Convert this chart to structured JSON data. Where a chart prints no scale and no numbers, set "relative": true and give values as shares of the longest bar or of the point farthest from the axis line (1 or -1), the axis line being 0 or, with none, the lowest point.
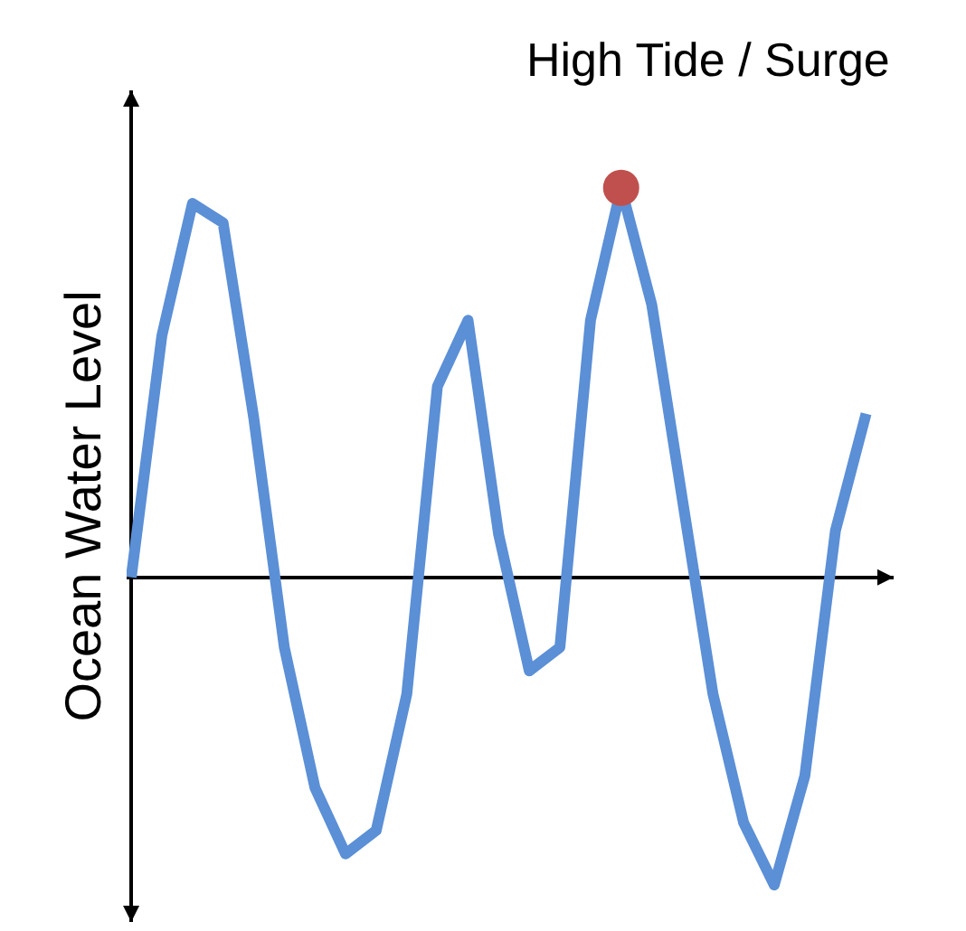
{
  "chart_data": {
    "type": "line",
    "relative": true,
    "tick_labels": false,
    "ylabel": "Ocean Water Level",
    "annotations": [
      "High Tide / Surge"
    ],
    "categories": [
      null,
      null,
      null,
      null,
      null,
      null,
      null,
      null,
      null,
      null,
      null,
      null,
      null,
      null,
      null,
      null,
      null,
      null,
      null,
      null,
      null,
      null,
      null,
      null,
      null
    ],
    "series": [
      {
        "color": "#5b8fd6",
        "colors": [
          null,
          null,
          null,
          null,
          null,
          null,
          null,
          null,
          null,
          null,
          null,
          null,
          null,
          null,
          null,
          null,
          "#c0504d",
          null,
          null,
          null,
          null,
          null,
          null,
          null,
          null
        ],
        "values": [
          0,
          0.62,
          0.96,
          0.91,
          0.41,
          -0.18,
          -0.54,
          -0.71,
          -0.65,
          -0.3,
          0.49,
          0.66,
          0.11,
          -0.24,
          -0.18,
          0.66,
          1.0,
          0.7,
          0.2,
          -0.3,
          -0.63,
          -0.79,
          -0.51,
          0.12,
          0.42
        ]
      }
    ]
  }
}
